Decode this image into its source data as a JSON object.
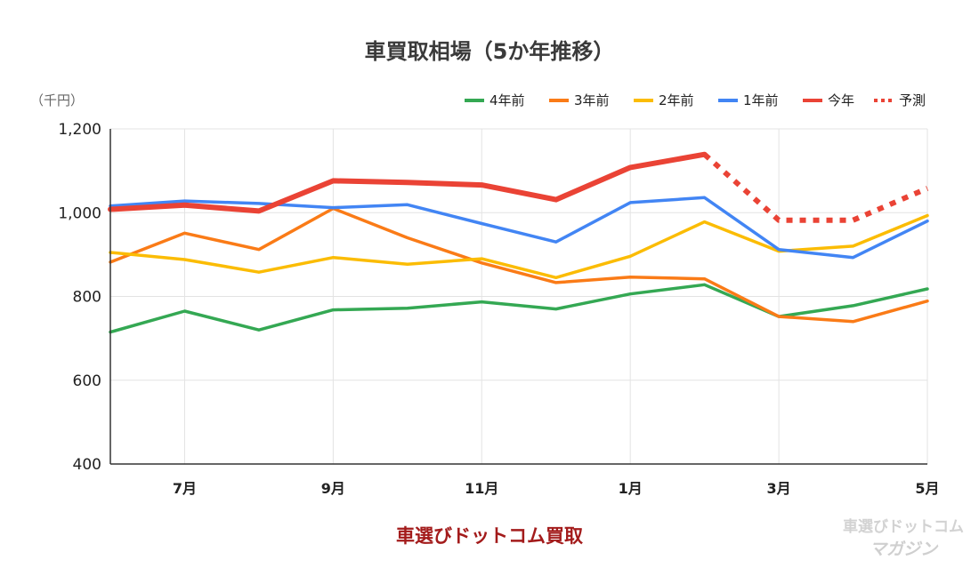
{
  "chart_data": {
    "type": "line",
    "title": "車買取相場（5か年推移）",
    "unit_label": "（千円）",
    "ylim": [
      400,
      1200
    ],
    "y_ticks": [
      "400",
      "600",
      "800",
      "1,000",
      "1,200"
    ],
    "x_tick_labels": [
      "7月",
      "9月",
      "11月",
      "1月",
      "3月",
      "5月"
    ],
    "x_ticks": [
      {
        "index": 1,
        "label": "7月"
      },
      {
        "index": 3,
        "label": "9月"
      },
      {
        "index": 5,
        "label": "11月"
      },
      {
        "index": 7,
        "label": "1月"
      },
      {
        "index": 9,
        "label": "3月"
      },
      {
        "index": 11,
        "label": "5月"
      }
    ],
    "points_count": 12,
    "grid": true,
    "legend_position": "top-right",
    "series": [
      {
        "name": "4年前",
        "color": "#34a853",
        "width": 3.5,
        "dashed": false,
        "values": [
          715,
          765,
          720,
          768,
          772,
          787,
          770,
          806,
          828,
          752,
          778,
          818
        ]
      },
      {
        "name": "3年前",
        "color": "#fa7b17",
        "width": 3.5,
        "dashed": false,
        "values": [
          882,
          951,
          912,
          1010,
          940,
          880,
          833,
          846,
          842,
          752,
          740,
          789
        ]
      },
      {
        "name": "2年前",
        "color": "#fbbc04",
        "width": 3.5,
        "dashed": false,
        "values": [
          905,
          888,
          858,
          893,
          877,
          890,
          845,
          896,
          978,
          908,
          920,
          993
        ]
      },
      {
        "name": "1年前",
        "color": "#4285f4",
        "width": 3.5,
        "dashed": false,
        "values": [
          1016,
          1028,
          1022,
          1012,
          1019,
          974,
          930,
          1024,
          1036,
          912,
          893,
          980
        ]
      },
      {
        "name": "今年",
        "color": "#ea4335",
        "width": 6,
        "dashed": false,
        "values": [
          1008,
          1018,
          1004,
          1076,
          1072,
          1066,
          1031,
          1108,
          1139,
          null,
          null,
          null
        ]
      },
      {
        "name": "予測",
        "color": "#ea4335",
        "width": 6,
        "dashed": true,
        "values": [
          null,
          null,
          null,
          null,
          null,
          null,
          null,
          null,
          1139,
          982,
          982,
          1058
        ]
      }
    ]
  },
  "footer": {
    "caption": "車選びドットコム買取",
    "logo_top": "車選びドットコム",
    "logo_bottom": "マガジン"
  }
}
